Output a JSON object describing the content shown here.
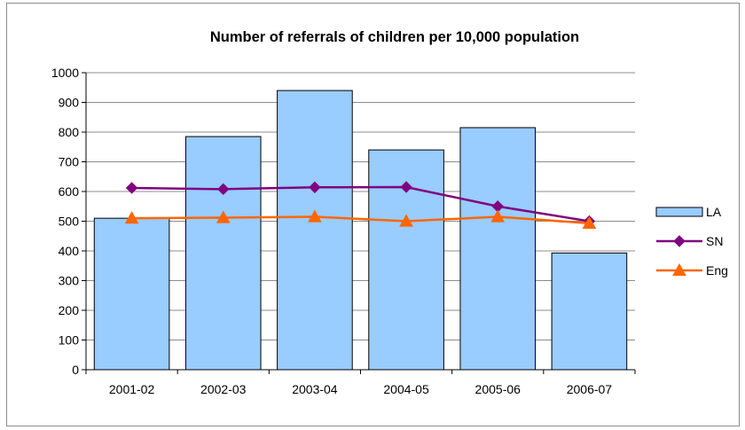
{
  "chart_data": {
    "type": "bar",
    "title": "Number of referrals of children per 10,000 population",
    "xlabel": "",
    "ylabel": "",
    "categories": [
      "2001-02",
      "2002-03",
      "2003-04",
      "2004-05",
      "2005-06",
      "2006-07"
    ],
    "ylim": [
      0,
      1000
    ],
    "yticks": [
      "0",
      "100",
      "200",
      "300",
      "400",
      "500",
      "600",
      "700",
      "800",
      "900",
      "1000"
    ],
    "grid": true,
    "legend_position": "right",
    "series": [
      {
        "name": "LA",
        "type": "bar",
        "values": [
          510,
          785,
          940,
          740,
          815,
          393
        ],
        "color": "#99ccff",
        "marker": "none"
      },
      {
        "name": "SN",
        "type": "line",
        "values": [
          612,
          608,
          614,
          615,
          550,
          500
        ],
        "color": "#800080",
        "marker": "diamond"
      },
      {
        "name": "Eng",
        "type": "line",
        "values": [
          510,
          512,
          515,
          500,
          515,
          493
        ],
        "color": "#ff6600",
        "marker": "triangle"
      }
    ]
  }
}
